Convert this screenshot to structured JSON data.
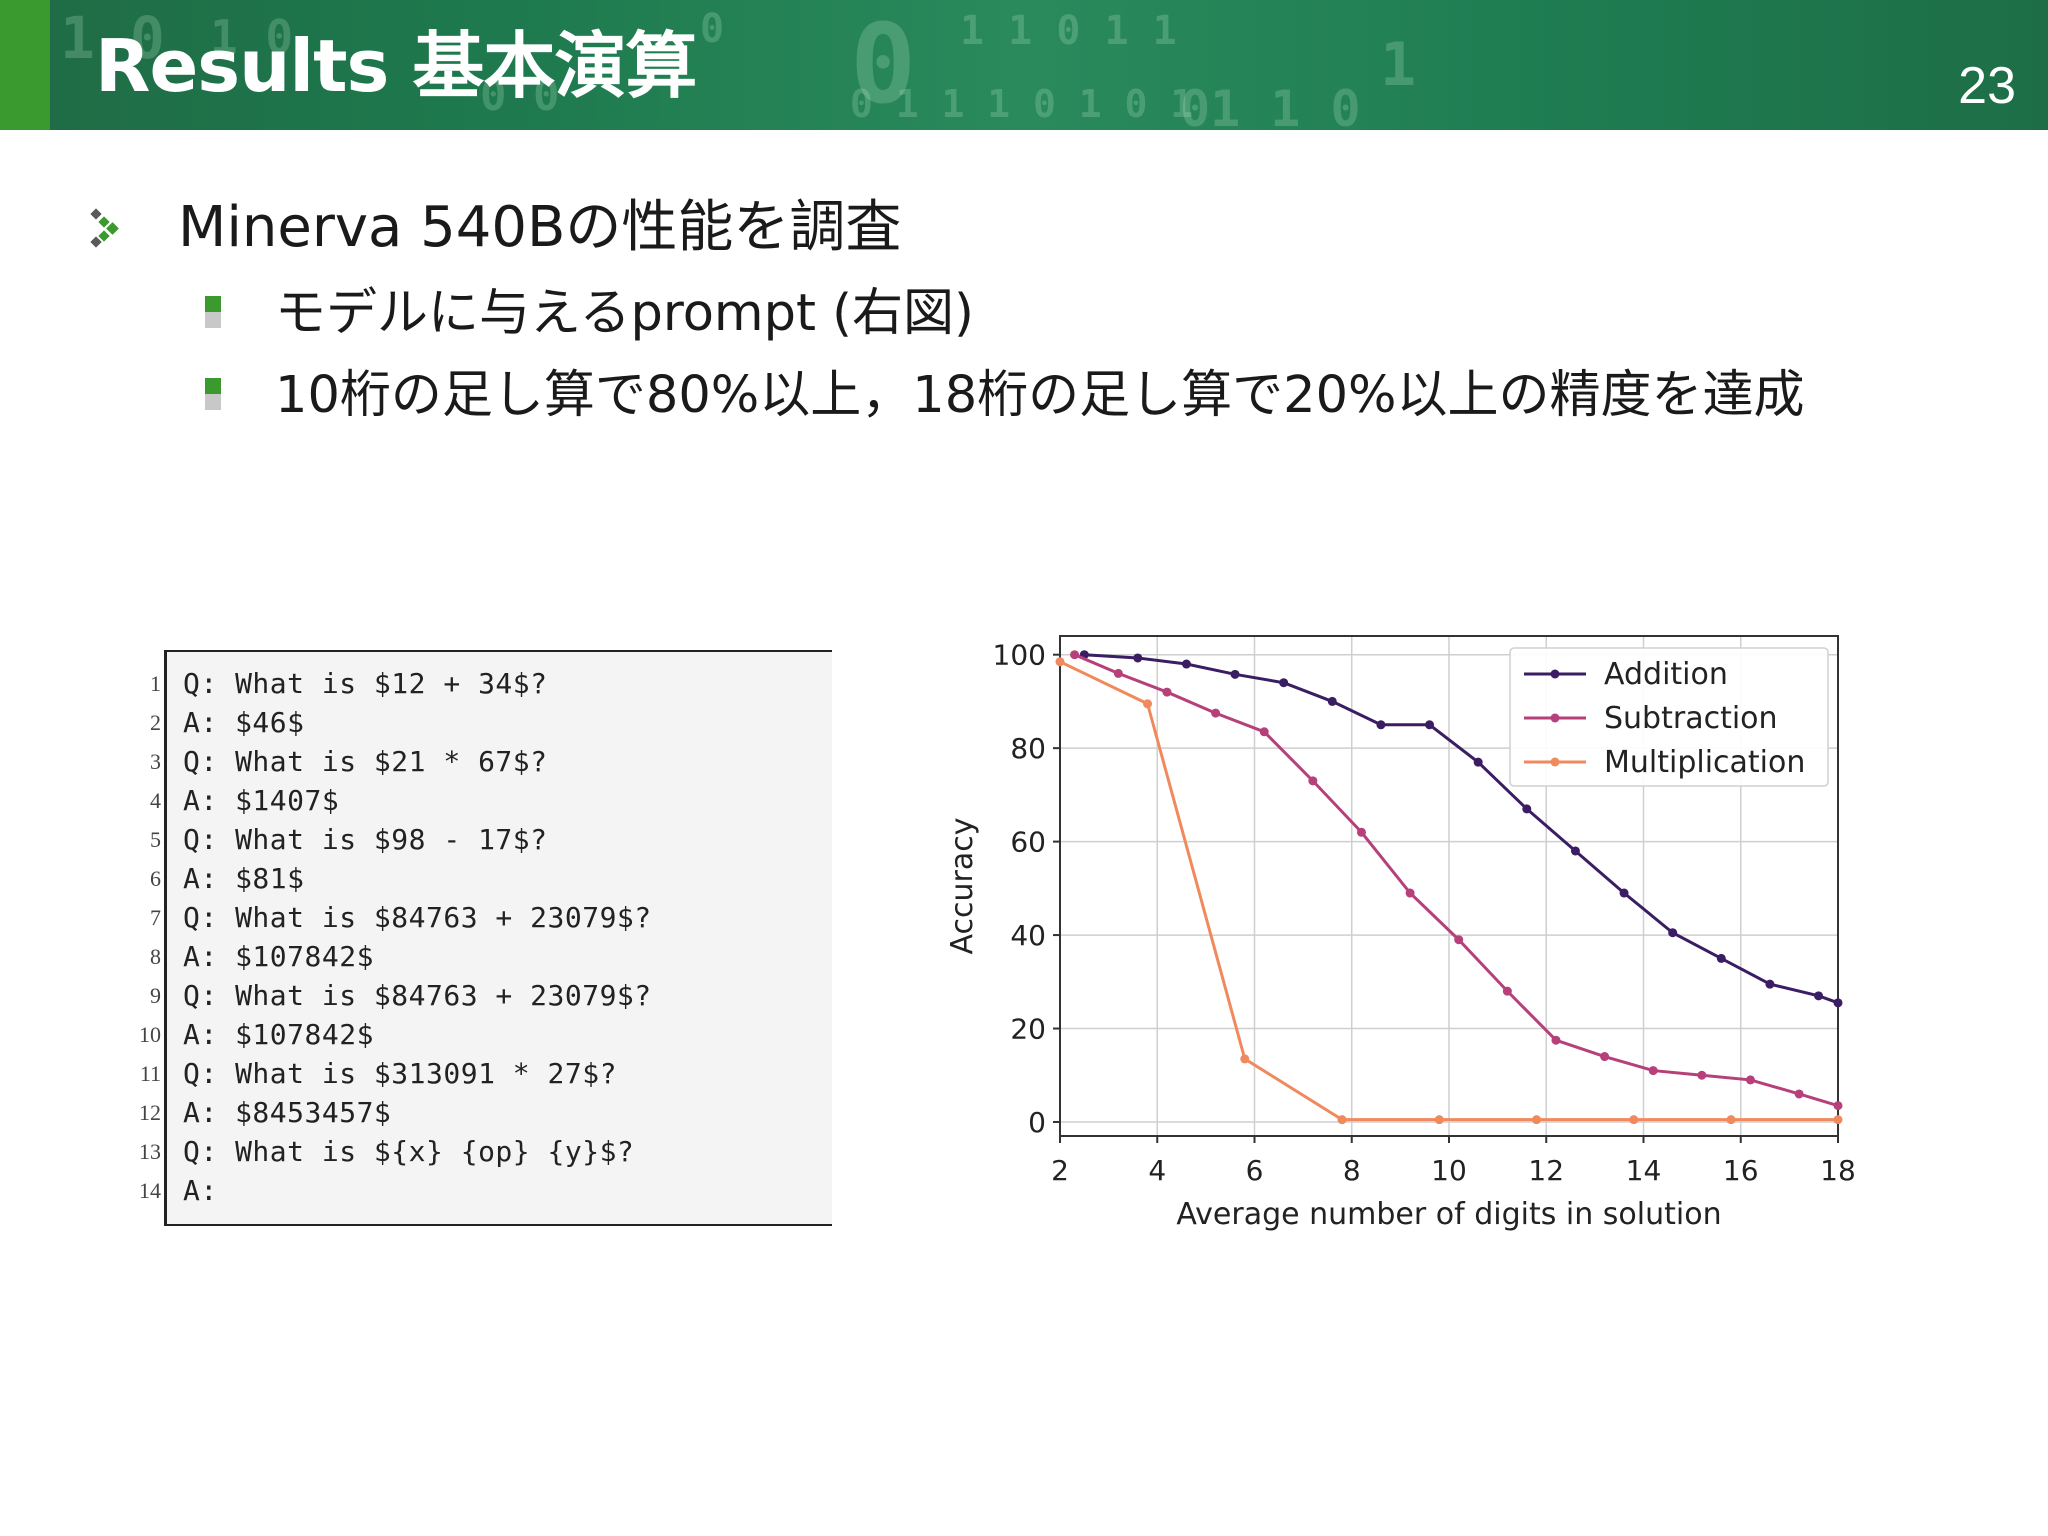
{
  "header": {
    "title": "Results 基本演算",
    "page_number": "23",
    "background_color": "#1f7a4e",
    "accent_color": "#3b9a2f"
  },
  "bullets": {
    "level1": "Minerva 540Bの性能を調査",
    "level2": [
      "モデルに与えるprompt (右図)",
      "10桁の足し算で80%以上，18桁の足し算で20%以上の精度を達成"
    ]
  },
  "code_panel": {
    "lines": [
      {
        "no": "1",
        "text": "Q: What is $12 + 34$?"
      },
      {
        "no": "2",
        "text": "A: $46$"
      },
      {
        "no": "3",
        "text": "Q: What is $21 * 67$?"
      },
      {
        "no": "4",
        "text": "A: $1407$"
      },
      {
        "no": "5",
        "text": "Q: What is $98 - 17$?"
      },
      {
        "no": "6",
        "text": "A: $81$"
      },
      {
        "no": "7",
        "text": "Q: What is $84763 + 23079$?"
      },
      {
        "no": "8",
        "text": "A: $107842$"
      },
      {
        "no": "9",
        "text": "Q: What is $84763 + 23079$?"
      },
      {
        "no": "10",
        "text": "A: $107842$"
      },
      {
        "no": "11",
        "text": "Q: What is $313091 * 27$?"
      },
      {
        "no": "12",
        "text": "A: $8453457$"
      },
      {
        "no": "13",
        "text": "Q: What is ${x} {op} {y}$?"
      },
      {
        "no": "14",
        "text": "A:"
      }
    ]
  },
  "chart_data": {
    "type": "line",
    "title": "",
    "xlabel": "Average number of digits in solution",
    "ylabel": "Accuracy",
    "xlim": [
      2,
      18
    ],
    "ylim": [
      -3,
      104
    ],
    "xticks": [
      2,
      4,
      6,
      8,
      10,
      12,
      14,
      16,
      18
    ],
    "yticks": [
      0,
      20,
      40,
      60,
      80,
      100
    ],
    "grid": true,
    "legend_position": "top-right",
    "series": [
      {
        "name": "Addition",
        "color": "#3a1d63",
        "points": [
          [
            2.5,
            100
          ],
          [
            3.6,
            99.3
          ],
          [
            4.6,
            98
          ],
          [
            5.6,
            95.8
          ],
          [
            6.6,
            94
          ],
          [
            7.6,
            90
          ],
          [
            8.6,
            85
          ],
          [
            9.6,
            85
          ],
          [
            10.6,
            77
          ],
          [
            11.6,
            67
          ],
          [
            12.6,
            58
          ],
          [
            13.6,
            49
          ],
          [
            14.6,
            40.5
          ],
          [
            15.6,
            35
          ],
          [
            16.6,
            29.5
          ],
          [
            17.6,
            27
          ],
          [
            18,
            25.5
          ]
        ]
      },
      {
        "name": "Subtraction",
        "color": "#b5407a",
        "points": [
          [
            2.3,
            100
          ],
          [
            3.2,
            96
          ],
          [
            4.2,
            92
          ],
          [
            5.2,
            87.5
          ],
          [
            6.2,
            83.5
          ],
          [
            7.2,
            73
          ],
          [
            8.2,
            62
          ],
          [
            9.2,
            49
          ],
          [
            10.2,
            39
          ],
          [
            11.2,
            28
          ],
          [
            12.2,
            17.5
          ],
          [
            13.2,
            14
          ],
          [
            14.2,
            11
          ],
          [
            15.2,
            10
          ],
          [
            16.2,
            9
          ],
          [
            17.2,
            6
          ],
          [
            18,
            3.5
          ]
        ]
      },
      {
        "name": "Multiplication",
        "color": "#f08a5d",
        "points": [
          [
            2,
            98.5
          ],
          [
            3.8,
            89.5
          ],
          [
            5.8,
            13.5
          ],
          [
            7.8,
            0.5
          ],
          [
            9.8,
            0.5
          ],
          [
            11.8,
            0.5
          ],
          [
            13.8,
            0.5
          ],
          [
            15.8,
            0.5
          ],
          [
            18,
            0.5
          ]
        ]
      }
    ]
  }
}
